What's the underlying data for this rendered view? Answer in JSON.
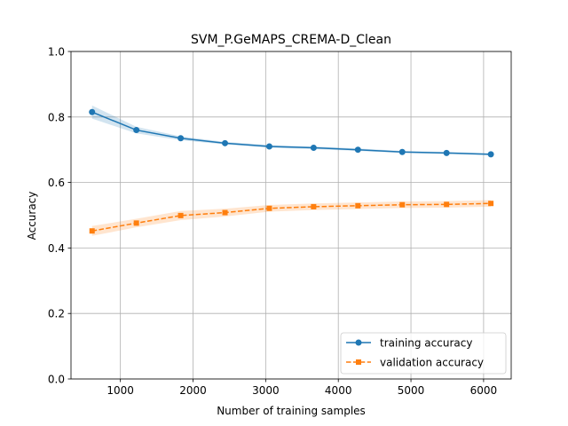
{
  "chart_data": {
    "type": "line",
    "title": "SVM_P.GeMAPS_CREMA-D_Clean",
    "xlabel": "Number of training samples",
    "ylabel": "Accuracy",
    "xlim": [
      320,
      6380
    ],
    "ylim": [
      0.0,
      1.0
    ],
    "xticks": [
      1000,
      2000,
      3000,
      4000,
      5000,
      6000
    ],
    "yticks": [
      0.0,
      0.2,
      0.4,
      0.6,
      0.8,
      1.0
    ],
    "grid": true,
    "legend_position": "lower-right",
    "x": [
      610,
      1220,
      1830,
      2440,
      3050,
      3660,
      4270,
      4880,
      5490,
      6100
    ],
    "series": [
      {
        "name": "training accuracy",
        "color": "#1f77b4",
        "marker": "circle",
        "linestyle": "solid",
        "values": [
          0.815,
          0.76,
          0.735,
          0.72,
          0.71,
          0.706,
          0.7,
          0.693,
          0.69,
          0.686
        ],
        "band_lower": [
          0.795,
          0.75,
          0.729,
          0.716,
          0.706,
          0.702,
          0.696,
          0.69,
          0.687,
          0.683
        ],
        "band_upper": [
          0.835,
          0.77,
          0.741,
          0.724,
          0.714,
          0.71,
          0.704,
          0.696,
          0.693,
          0.689
        ]
      },
      {
        "name": "validation accuracy",
        "color": "#ff7f0e",
        "marker": "square",
        "linestyle": "dashed",
        "values": [
          0.452,
          0.476,
          0.499,
          0.508,
          0.521,
          0.526,
          0.529,
          0.532,
          0.533,
          0.536
        ],
        "band_lower": [
          0.437,
          0.463,
          0.485,
          0.496,
          0.511,
          0.516,
          0.519,
          0.522,
          0.523,
          0.526
        ],
        "band_upper": [
          0.467,
          0.489,
          0.513,
          0.52,
          0.531,
          0.536,
          0.539,
          0.542,
          0.543,
          0.546
        ]
      }
    ]
  }
}
